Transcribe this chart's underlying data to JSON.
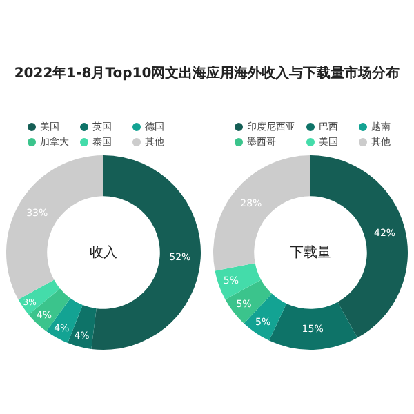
{
  "chart_data": [
    {
      "type": "donut",
      "title": "2022年1-8月Top10网文出海应用海外收入与下载量市场分布",
      "annotations": [
        "收入"
      ],
      "legend": "top",
      "categories": [
        "美国",
        "英国",
        "德国",
        "加拿大",
        "泰国",
        "其他"
      ],
      "values": [
        52,
        4,
        4,
        4,
        3,
        33
      ],
      "value_labels": [
        "52%",
        "4%",
        "4%",
        "4%",
        "3%",
        "33%"
      ],
      "colors": [
        "#155e55",
        "#0e7368",
        "#13a393",
        "#3bc48c",
        "#44dcaa",
        "#cccccc"
      ]
    },
    {
      "type": "donut",
      "annotations": [
        "下载量"
      ],
      "legend": "top",
      "categories": [
        "印度尼西亚",
        "巴西",
        "越南",
        "墨西哥",
        "美国",
        "其他"
      ],
      "values": [
        42,
        15,
        5,
        5,
        5,
        28
      ],
      "value_labels": [
        "42%",
        "15%",
        "5%",
        "5%",
        "5%",
        "28%"
      ],
      "colors": [
        "#155e55",
        "#0e7368",
        "#13a393",
        "#3bc48c",
        "#44dcaa",
        "#cccccc"
      ]
    }
  ]
}
